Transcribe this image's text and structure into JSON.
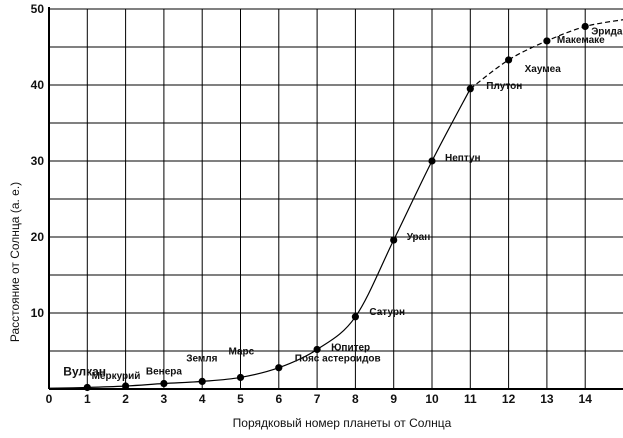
{
  "chart_data": {
    "type": "line",
    "title": "",
    "xlabel": "Порядковый номер планеты от Солнца",
    "ylabel": "Расстояние от Солнца (а. е.)",
    "xlim": [
      0,
      15
    ],
    "ylim": [
      0,
      50
    ],
    "grid": true,
    "x_ticks": [
      "0",
      "1",
      "2",
      "3",
      "4",
      "5",
      "6",
      "7",
      "8",
      "9",
      "10",
      "11",
      "12",
      "13",
      "14"
    ],
    "y_ticks": [
      "10",
      "20",
      "30",
      "40",
      "50"
    ],
    "points": [
      {
        "label": "Вулкан",
        "x": 1,
        "y": 0.2
      },
      {
        "label": "Меркурий",
        "x": 2,
        "y": 0.39
      },
      {
        "label": "Венера",
        "x": 3,
        "y": 0.72
      },
      {
        "label": "Земля",
        "x": 4,
        "y": 1.0
      },
      {
        "label": "Марс",
        "x": 5,
        "y": 1.52
      },
      {
        "label": "Пояс астероидов",
        "x": 6,
        "y": 2.8
      },
      {
        "label": "Юпитер",
        "x": 7,
        "y": 5.2
      },
      {
        "label": "Сатурн",
        "x": 8,
        "y": 9.5
      },
      {
        "label": "Уран",
        "x": 9,
        "y": 19.6
      },
      {
        "label": "Нептун",
        "x": 10,
        "y": 30.0
      },
      {
        "label": "Плутон",
        "x": 11,
        "y": 39.5
      },
      {
        "label": "Хаумеа",
        "x": 12,
        "y": 43.3
      },
      {
        "label": "Макемаке",
        "x": 13,
        "y": 45.8
      },
      {
        "label": "Эрида",
        "x": 14,
        "y": 47.7
      }
    ],
    "solid_until_x": 11,
    "dashed_extension": {
      "x": 15,
      "y": 48.6
    }
  }
}
